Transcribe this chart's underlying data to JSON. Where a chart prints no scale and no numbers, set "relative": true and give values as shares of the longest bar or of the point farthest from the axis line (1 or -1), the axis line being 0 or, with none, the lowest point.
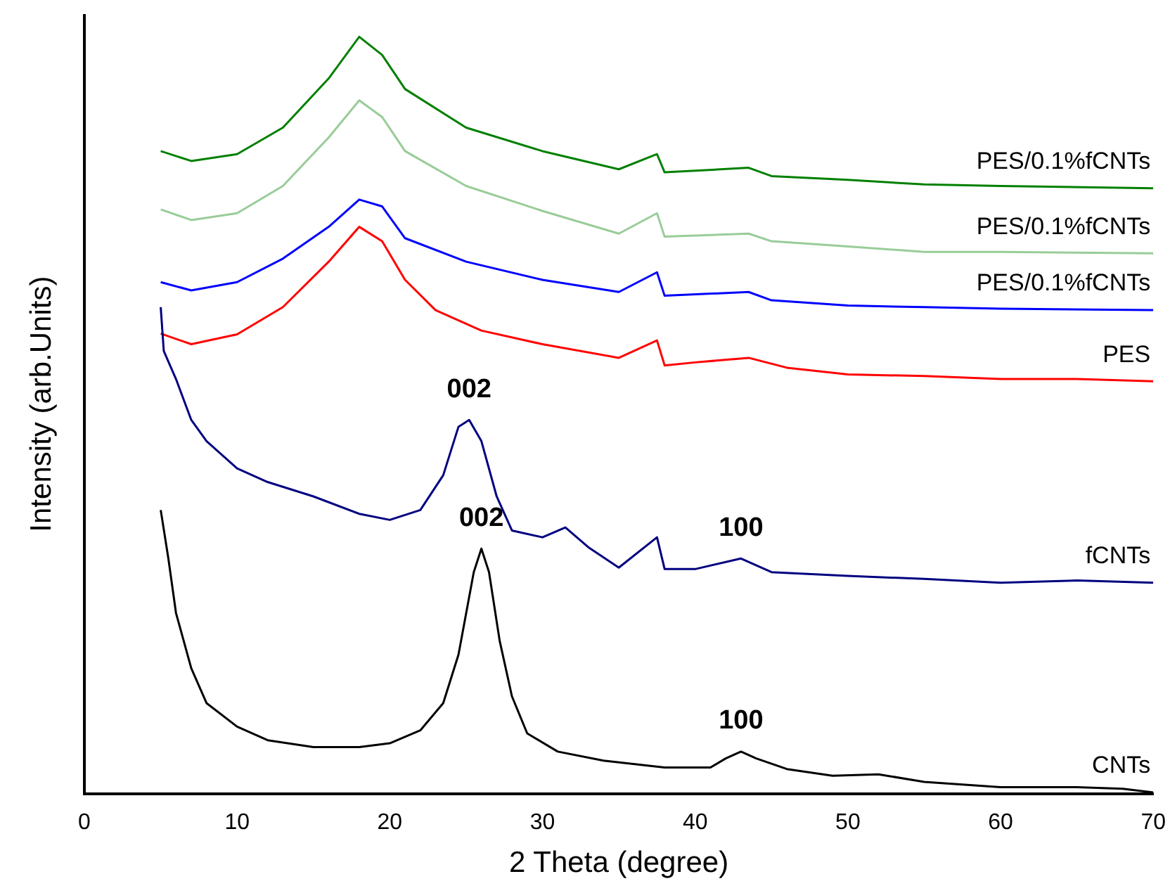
{
  "chart_data": {
    "type": "line",
    "relative": true,
    "xlabel": "2 Theta (degree)",
    "ylabel": "Intensity (arb.Units)",
    "xlim": [
      0,
      70
    ],
    "xticks": [
      0,
      10,
      20,
      30,
      40,
      50,
      60,
      70
    ],
    "tick_labels": "x",
    "grid": false,
    "legend": false,
    "marker": "none",
    "line_style": "solid",
    "series": [
      {
        "name": "CNTs",
        "color": "#000000",
        "x": [
          5,
          5.5,
          6,
          7,
          8,
          10,
          12,
          15,
          18,
          20,
          22,
          23.5,
          24.5,
          25.5,
          26,
          26.5,
          27.2,
          28,
          29,
          31,
          34,
          38,
          41,
          42,
          43,
          44,
          46,
          49,
          52,
          55,
          60,
          65,
          68,
          70
        ],
        "values": [
          0.375,
          0.311,
          0.239,
          0.166,
          0.12,
          0.089,
          0.071,
          0.062,
          0.062,
          0.067,
          0.084,
          0.12,
          0.184,
          0.293,
          0.324,
          0.293,
          0.202,
          0.129,
          0.08,
          0.056,
          0.044,
          0.035,
          0.035,
          0.047,
          0.056,
          0.047,
          0.033,
          0.024,
          0.026,
          0.016,
          0.009,
          0.009,
          0.007,
          0.002
        ]
      },
      {
        "name": "fCNTs",
        "color": "#000080",
        "x": [
          5,
          5.2,
          6,
          7,
          8,
          10,
          12,
          15,
          18,
          20,
          22,
          23.5,
          24.5,
          25.2,
          26,
          27,
          28,
          30,
          31.5,
          33,
          35,
          37.5,
          38,
          40,
          43,
          45,
          50,
          55,
          60,
          65,
          70
        ],
        "values": [
          0.643,
          0.585,
          0.548,
          0.494,
          0.466,
          0.43,
          0.412,
          0.393,
          0.37,
          0.362,
          0.375,
          0.421,
          0.485,
          0.494,
          0.466,
          0.393,
          0.348,
          0.339,
          0.352,
          0.326,
          0.299,
          0.339,
          0.297,
          0.297,
          0.311,
          0.293,
          0.288,
          0.284,
          0.279,
          0.282,
          0.279
        ]
      },
      {
        "name": "PES",
        "color": "#ff0000",
        "x": [
          5,
          7,
          10,
          13,
          16,
          18,
          19.5,
          21,
          23,
          26,
          30,
          35,
          37.5,
          38,
          40,
          43.5,
          46,
          50,
          55,
          60,
          65,
          70
        ],
        "values": [
          0.608,
          0.594,
          0.607,
          0.643,
          0.703,
          0.749,
          0.73,
          0.679,
          0.639,
          0.612,
          0.594,
          0.576,
          0.599,
          0.566,
          0.57,
          0.576,
          0.563,
          0.554,
          0.552,
          0.548,
          0.548,
          0.545
        ]
      },
      {
        "name": "PES/0.1%fCNTs",
        "color": "#0000ff",
        "x": [
          5,
          7,
          10,
          13,
          16,
          18,
          19.5,
          21,
          25,
          30,
          35,
          37.5,
          38,
          43.5,
          45,
          50,
          55,
          60,
          70
        ],
        "values": [
          0.676,
          0.665,
          0.676,
          0.707,
          0.749,
          0.785,
          0.776,
          0.734,
          0.703,
          0.679,
          0.663,
          0.689,
          0.658,
          0.663,
          0.652,
          0.645,
          0.643,
          0.641,
          0.639
        ]
      },
      {
        "name": "PES/0.1%fCNTs",
        "color": "#99cc99",
        "x": [
          5,
          7,
          10,
          13,
          16,
          18,
          19.5,
          21,
          25,
          30,
          35,
          37.5,
          38,
          43.5,
          45,
          50,
          55,
          60,
          70
        ],
        "values": [
          0.772,
          0.758,
          0.767,
          0.803,
          0.867,
          0.916,
          0.894,
          0.849,
          0.803,
          0.77,
          0.74,
          0.767,
          0.736,
          0.74,
          0.73,
          0.723,
          0.716,
          0.716,
          0.714
        ]
      },
      {
        "name": "PES/0.1%fCNTs",
        "color": "#008000",
        "x": [
          5,
          7,
          10,
          13,
          16,
          18,
          19.5,
          21,
          25,
          30,
          35,
          37.5,
          38,
          43.5,
          45,
          50,
          55,
          60,
          70
        ],
        "values": [
          0.849,
          0.836,
          0.845,
          0.88,
          0.945,
          1.0,
          0.976,
          0.931,
          0.88,
          0.849,
          0.825,
          0.845,
          0.821,
          0.827,
          0.816,
          0.811,
          0.805,
          0.803,
          0.8
        ]
      }
    ],
    "annotations": [
      {
        "text": "002",
        "x": 25.2,
        "y": 0.494
      },
      {
        "text": "100",
        "x": 43,
        "y": 0.311
      },
      {
        "text": "002",
        "x": 26,
        "y": 0.324
      },
      {
        "text": "100",
        "x": 43,
        "y": 0.056
      }
    ]
  }
}
